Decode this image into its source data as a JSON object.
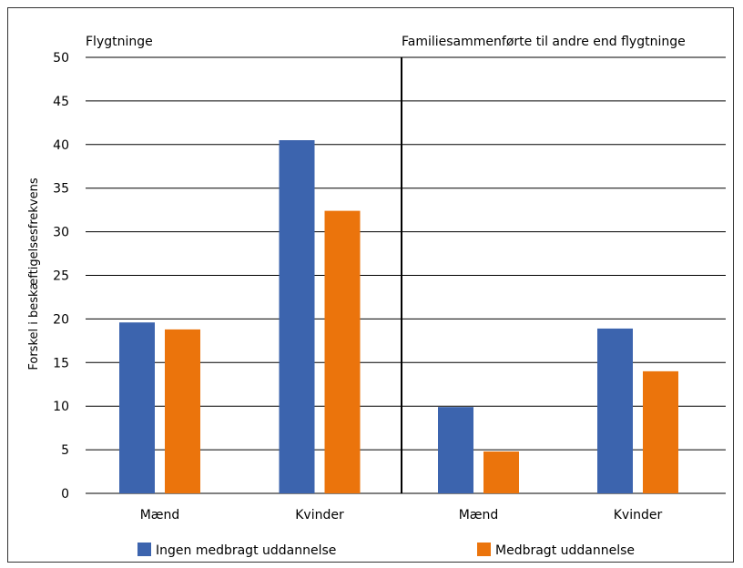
{
  "chart_data": {
    "type": "bar",
    "ylabel": "Forskel i beskæftigelsesfrekvens",
    "ylim": [
      0,
      50
    ],
    "yticks": [
      0,
      5,
      10,
      15,
      20,
      25,
      30,
      35,
      40,
      45,
      50
    ],
    "grid": true,
    "legend_placement": "bottom",
    "panels": [
      {
        "title": "Flygtninge",
        "categories": [
          "Mænd",
          "Kvinder"
        ],
        "series": [
          {
            "name": "Ingen medbragt uddannelse",
            "values": [
              19.6,
              40.5
            ]
          },
          {
            "name": "Medbragt uddannelse",
            "values": [
              18.8,
              32.4
            ]
          }
        ]
      },
      {
        "title": "Familiesammenførte til andre end flygtninge",
        "categories": [
          "Mænd",
          "Kvinder"
        ],
        "series": [
          {
            "name": "Ingen medbragt uddannelse",
            "values": [
              9.9,
              18.9
            ]
          },
          {
            "name": "Medbragt uddannelse",
            "values": [
              4.8,
              14.0
            ]
          }
        ]
      }
    ],
    "legend": [
      {
        "name": "Ingen medbragt uddannelse",
        "color": "#3c64ae"
      },
      {
        "name": "Medbragt uddannelse",
        "color": "#eb740c"
      }
    ]
  }
}
